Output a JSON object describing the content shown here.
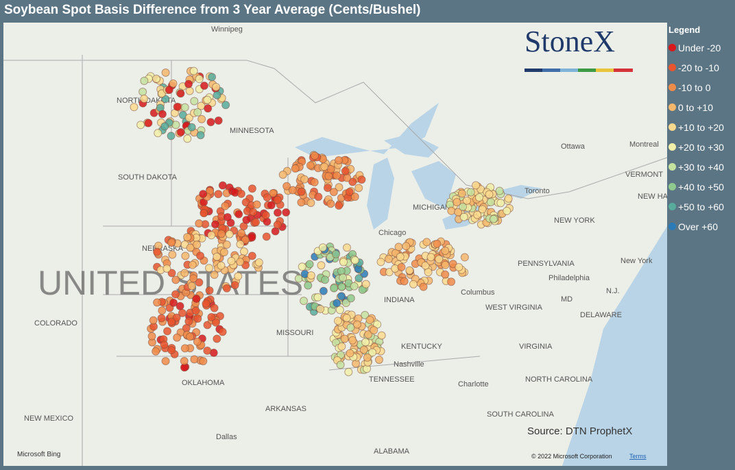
{
  "header": {
    "title": "Soybean Spot Basis Difference from 3 Year Average (Cents/Bushel)"
  },
  "legend": {
    "title": "Legend",
    "items": [
      {
        "label": "Under -20",
        "color": "#d7191c"
      },
      {
        "label": "-20 to -10",
        "color": "#e8552e"
      },
      {
        "label": "-10 to 0",
        "color": "#f08c4a"
      },
      {
        "label": "0 to +10",
        "color": "#f6b76c"
      },
      {
        "label": "+10 to +20",
        "color": "#fad98e"
      },
      {
        "label": "+20 to +30",
        "color": "#f2f0a8"
      },
      {
        "label": "+30 to +40",
        "color": "#c5e2a0"
      },
      {
        "label": "+40 to +50",
        "color": "#8fc98d"
      },
      {
        "label": "+50 to +60",
        "color": "#58ac9c"
      },
      {
        "label": "Over +60",
        "color": "#2b7bb9"
      }
    ]
  },
  "logo": "StoneX",
  "source": "Source: DTN ProphetX",
  "attribution": {
    "provider": "Microsoft Bing",
    "copyright": "© 2022 Microsoft Corporation",
    "terms": "Terms"
  },
  "map": {
    "labels": [
      "Winnipeg",
      "NORTH DAKOTA",
      "MINNESOTA",
      "SOUTH DAKOTA",
      "NEBRASKA",
      "UNITED STATES",
      "COLORADO",
      "NEW MEXICO",
      "OKLAHOMA",
      "ARKANSAS",
      "MISSOURI",
      "Dallas",
      "ALABAMA",
      "TENNESSEE",
      "Nashville",
      "KENTUCKY",
      "INDIANA",
      "Chicago",
      "MICHIGAN",
      "Toronto",
      "Ottawa",
      "Montreal",
      "VERMONT",
      "NEW HAMPSHIRE",
      "NEW YORK",
      "New York",
      "PENNSYLVANIA",
      "Philadelphia",
      "MD",
      "N.J.",
      "DELAWARE",
      "Columbus",
      "WEST VIRGINIA",
      "VIRGINIA",
      "NORTH CAROLINA",
      "SOUTH CAROLINA",
      "Charlotte"
    ]
  }
}
